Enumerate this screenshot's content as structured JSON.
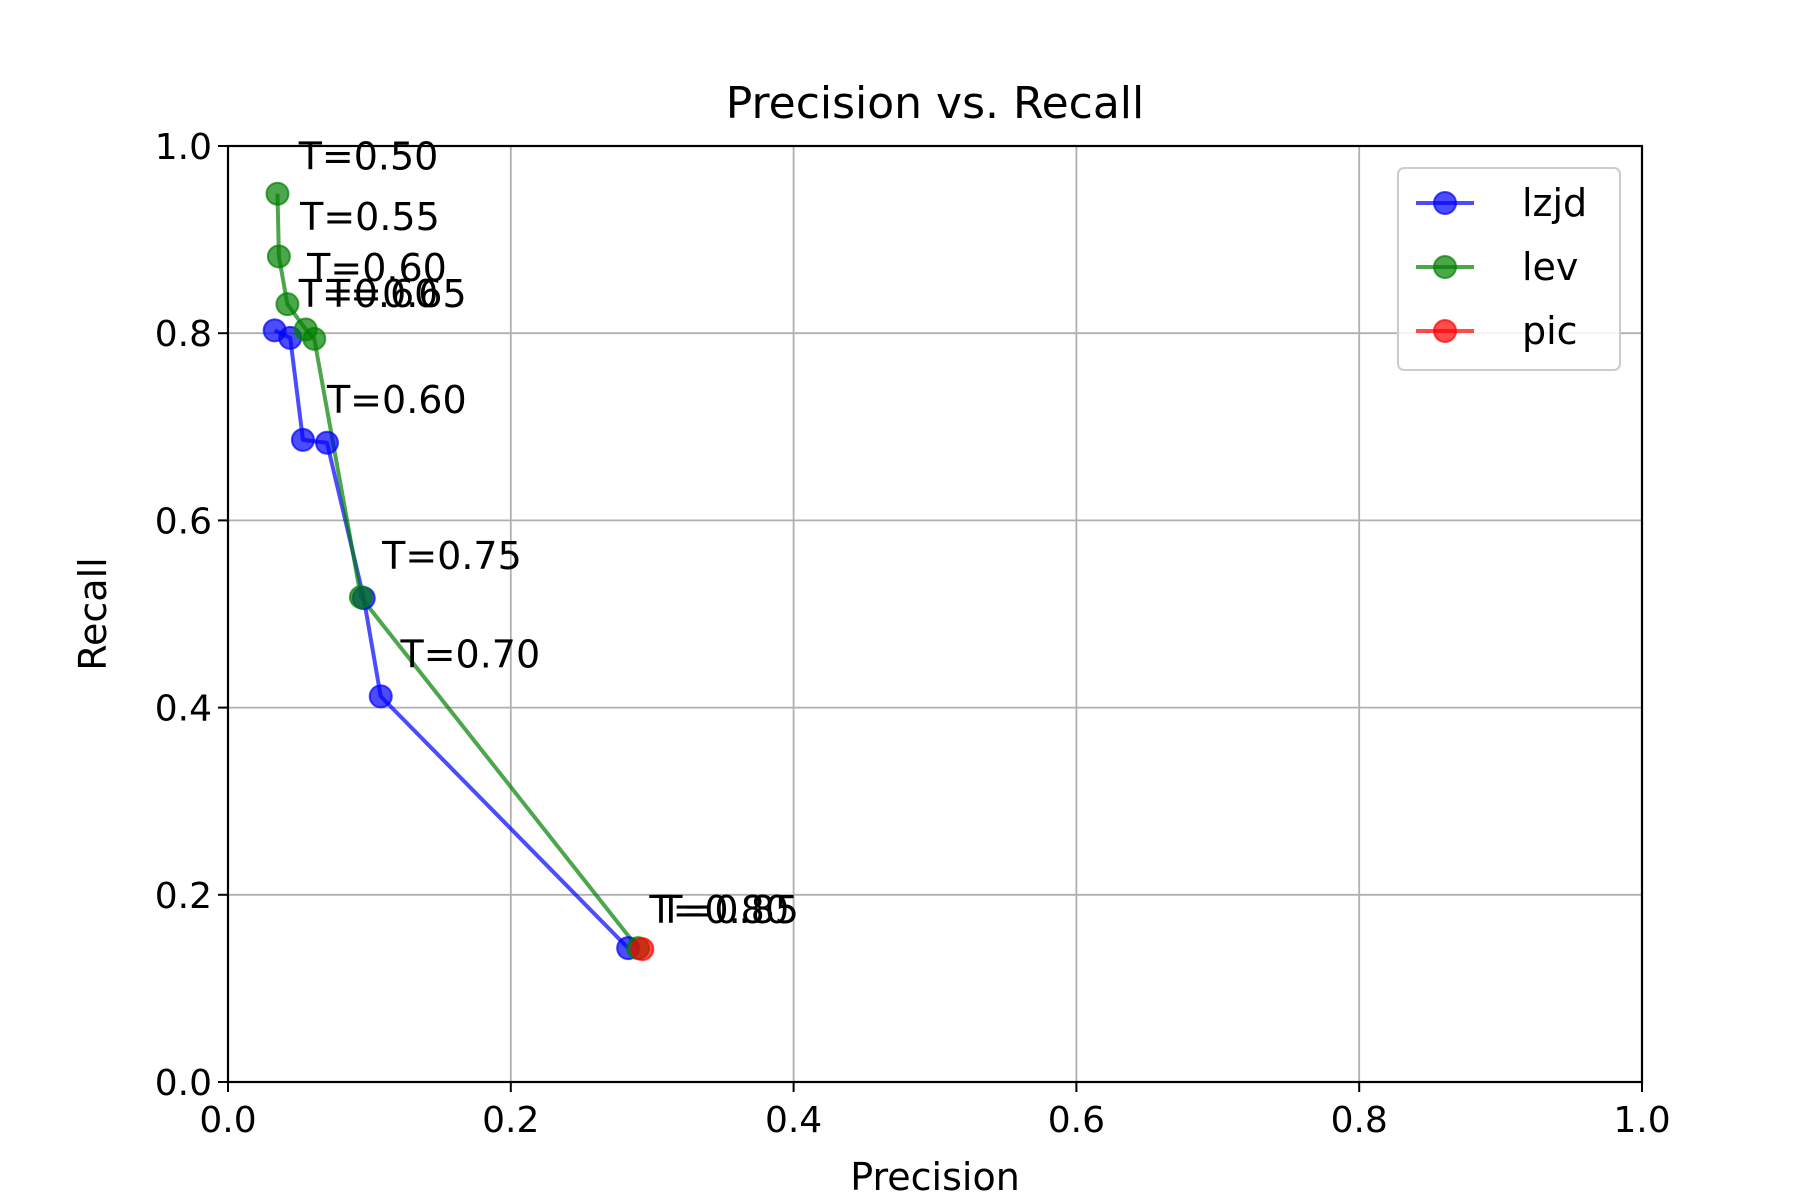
{
  "chart_data": {
    "type": "line",
    "title": "Precision vs. Recall",
    "xlabel": "Precision",
    "ylabel": "Recall",
    "xlim": [
      0.0,
      1.0
    ],
    "ylim": [
      0.0,
      1.0
    ],
    "xticks": [
      "0.0",
      "0.2",
      "0.4",
      "0.6",
      "0.8",
      "1.0"
    ],
    "yticks": [
      "0.0",
      "0.2",
      "0.4",
      "0.6",
      "0.8",
      "1.0"
    ],
    "grid": true,
    "legend_position": "top-right",
    "series": [
      {
        "name": "lzjd",
        "color": "#0000ff",
        "points": [
          {
            "x": 0.033,
            "y": 0.803,
            "label": "T=0.50"
          },
          {
            "x": 0.044,
            "y": 0.795,
            "label": "T=0.55"
          },
          {
            "x": 0.053,
            "y": 0.686,
            "label": "T=0.60"
          },
          {
            "x": 0.07,
            "y": 0.683,
            "label": "T=0.65"
          },
          {
            "x": 0.096,
            "y": 0.517,
            "label": "T=0.70"
          },
          {
            "x": 0.108,
            "y": 0.412,
            "label": "T=0.70"
          },
          {
            "x": 0.283,
            "y": 0.143,
            "label": "T=0.80"
          }
        ]
      },
      {
        "name": "lev",
        "color": "#008000",
        "points": [
          {
            "x": 0.035,
            "y": 0.949,
            "label": "T=0.50"
          },
          {
            "x": 0.036,
            "y": 0.882,
            "label": "T=0.55"
          },
          {
            "x": 0.042,
            "y": 0.831,
            "label": "T=0.60"
          },
          {
            "x": 0.055,
            "y": 0.804,
            "label": "T=0.65"
          },
          {
            "x": 0.061,
            "y": 0.794,
            "label": "T=0.60"
          },
          {
            "x": 0.094,
            "y": 0.518,
            "label": "T=0.75"
          },
          {
            "x": 0.29,
            "y": 0.143,
            "label": "T=0.85"
          }
        ]
      },
      {
        "name": "pic",
        "color": "#ff0000",
        "points": [
          {
            "x": 0.293,
            "y": 0.142,
            "label": "T=0.80"
          }
        ]
      }
    ],
    "annotations": [
      {
        "text": "T=0.50",
        "x": 0.05,
        "y": 0.975
      },
      {
        "text": "T=0.55",
        "x": 0.051,
        "y": 0.91
      },
      {
        "text": "T=0.60",
        "x": 0.056,
        "y": 0.856
      },
      {
        "text": "T=0.65",
        "x": 0.07,
        "y": 0.828
      },
      {
        "text": "T=0.60",
        "x": 0.05,
        "y": 0.828
      },
      {
        "text": "T=0.60",
        "x": 0.07,
        "y": 0.715
      },
      {
        "text": "T=0.75",
        "x": 0.109,
        "y": 0.548
      },
      {
        "text": "T=0.70",
        "x": 0.122,
        "y": 0.443
      },
      {
        "text": "T=0.80",
        "x": 0.298,
        "y": 0.17
      },
      {
        "text": "T=0.85",
        "x": 0.305,
        "y": 0.17
      }
    ]
  }
}
